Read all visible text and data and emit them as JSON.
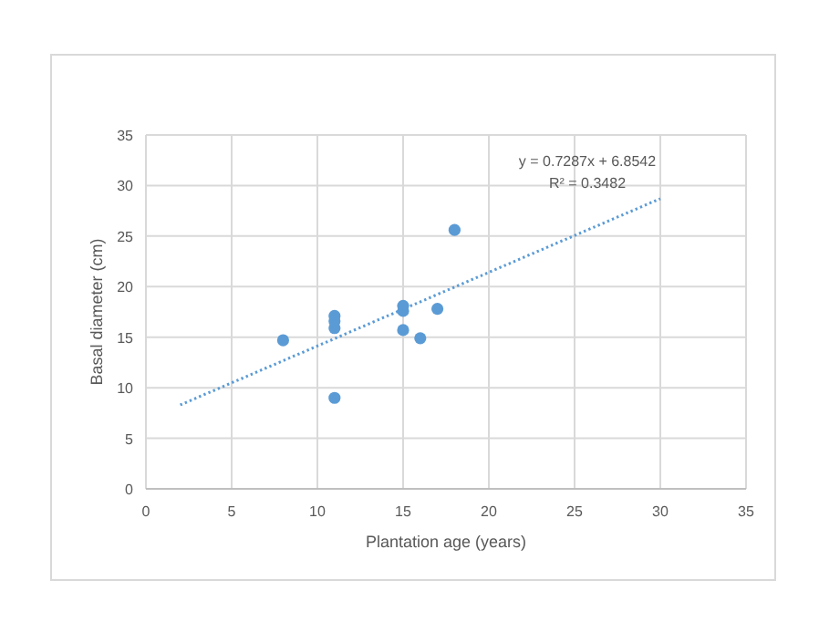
{
  "chart_data": {
    "type": "scatter",
    "xlabel": "Plantation age (years)",
    "ylabel": "Basal diameter (cm)",
    "series": [
      {
        "color": "#5b9bd5",
        "x": [
          8,
          11,
          11,
          11,
          11,
          15,
          15,
          15,
          16,
          17,
          18
        ],
        "values": [
          14.7,
          17.1,
          16.6,
          15.9,
          9,
          18.1,
          17.6,
          15.7,
          14.9,
          17.8,
          25.6
        ],
        "marker": "circle"
      },
      {
        "type": "line",
        "color": "#5b9bd5",
        "x": [
          2,
          30
        ],
        "values": [
          8.3,
          28.7
        ],
        "line_style": "dotted",
        "marker": "none"
      }
    ],
    "annotations": [
      "y = 0.7287x + 6.8542",
      "R² = 0.3482"
    ],
    "xlim": [
      0,
      35
    ],
    "xticks": [
      0,
      5,
      10,
      15,
      20,
      25,
      30,
      35
    ],
    "ylim": [
      0,
      35
    ],
    "yticks": [
      0,
      5,
      10,
      15,
      20,
      25,
      30,
      35
    ],
    "grid": true
  }
}
